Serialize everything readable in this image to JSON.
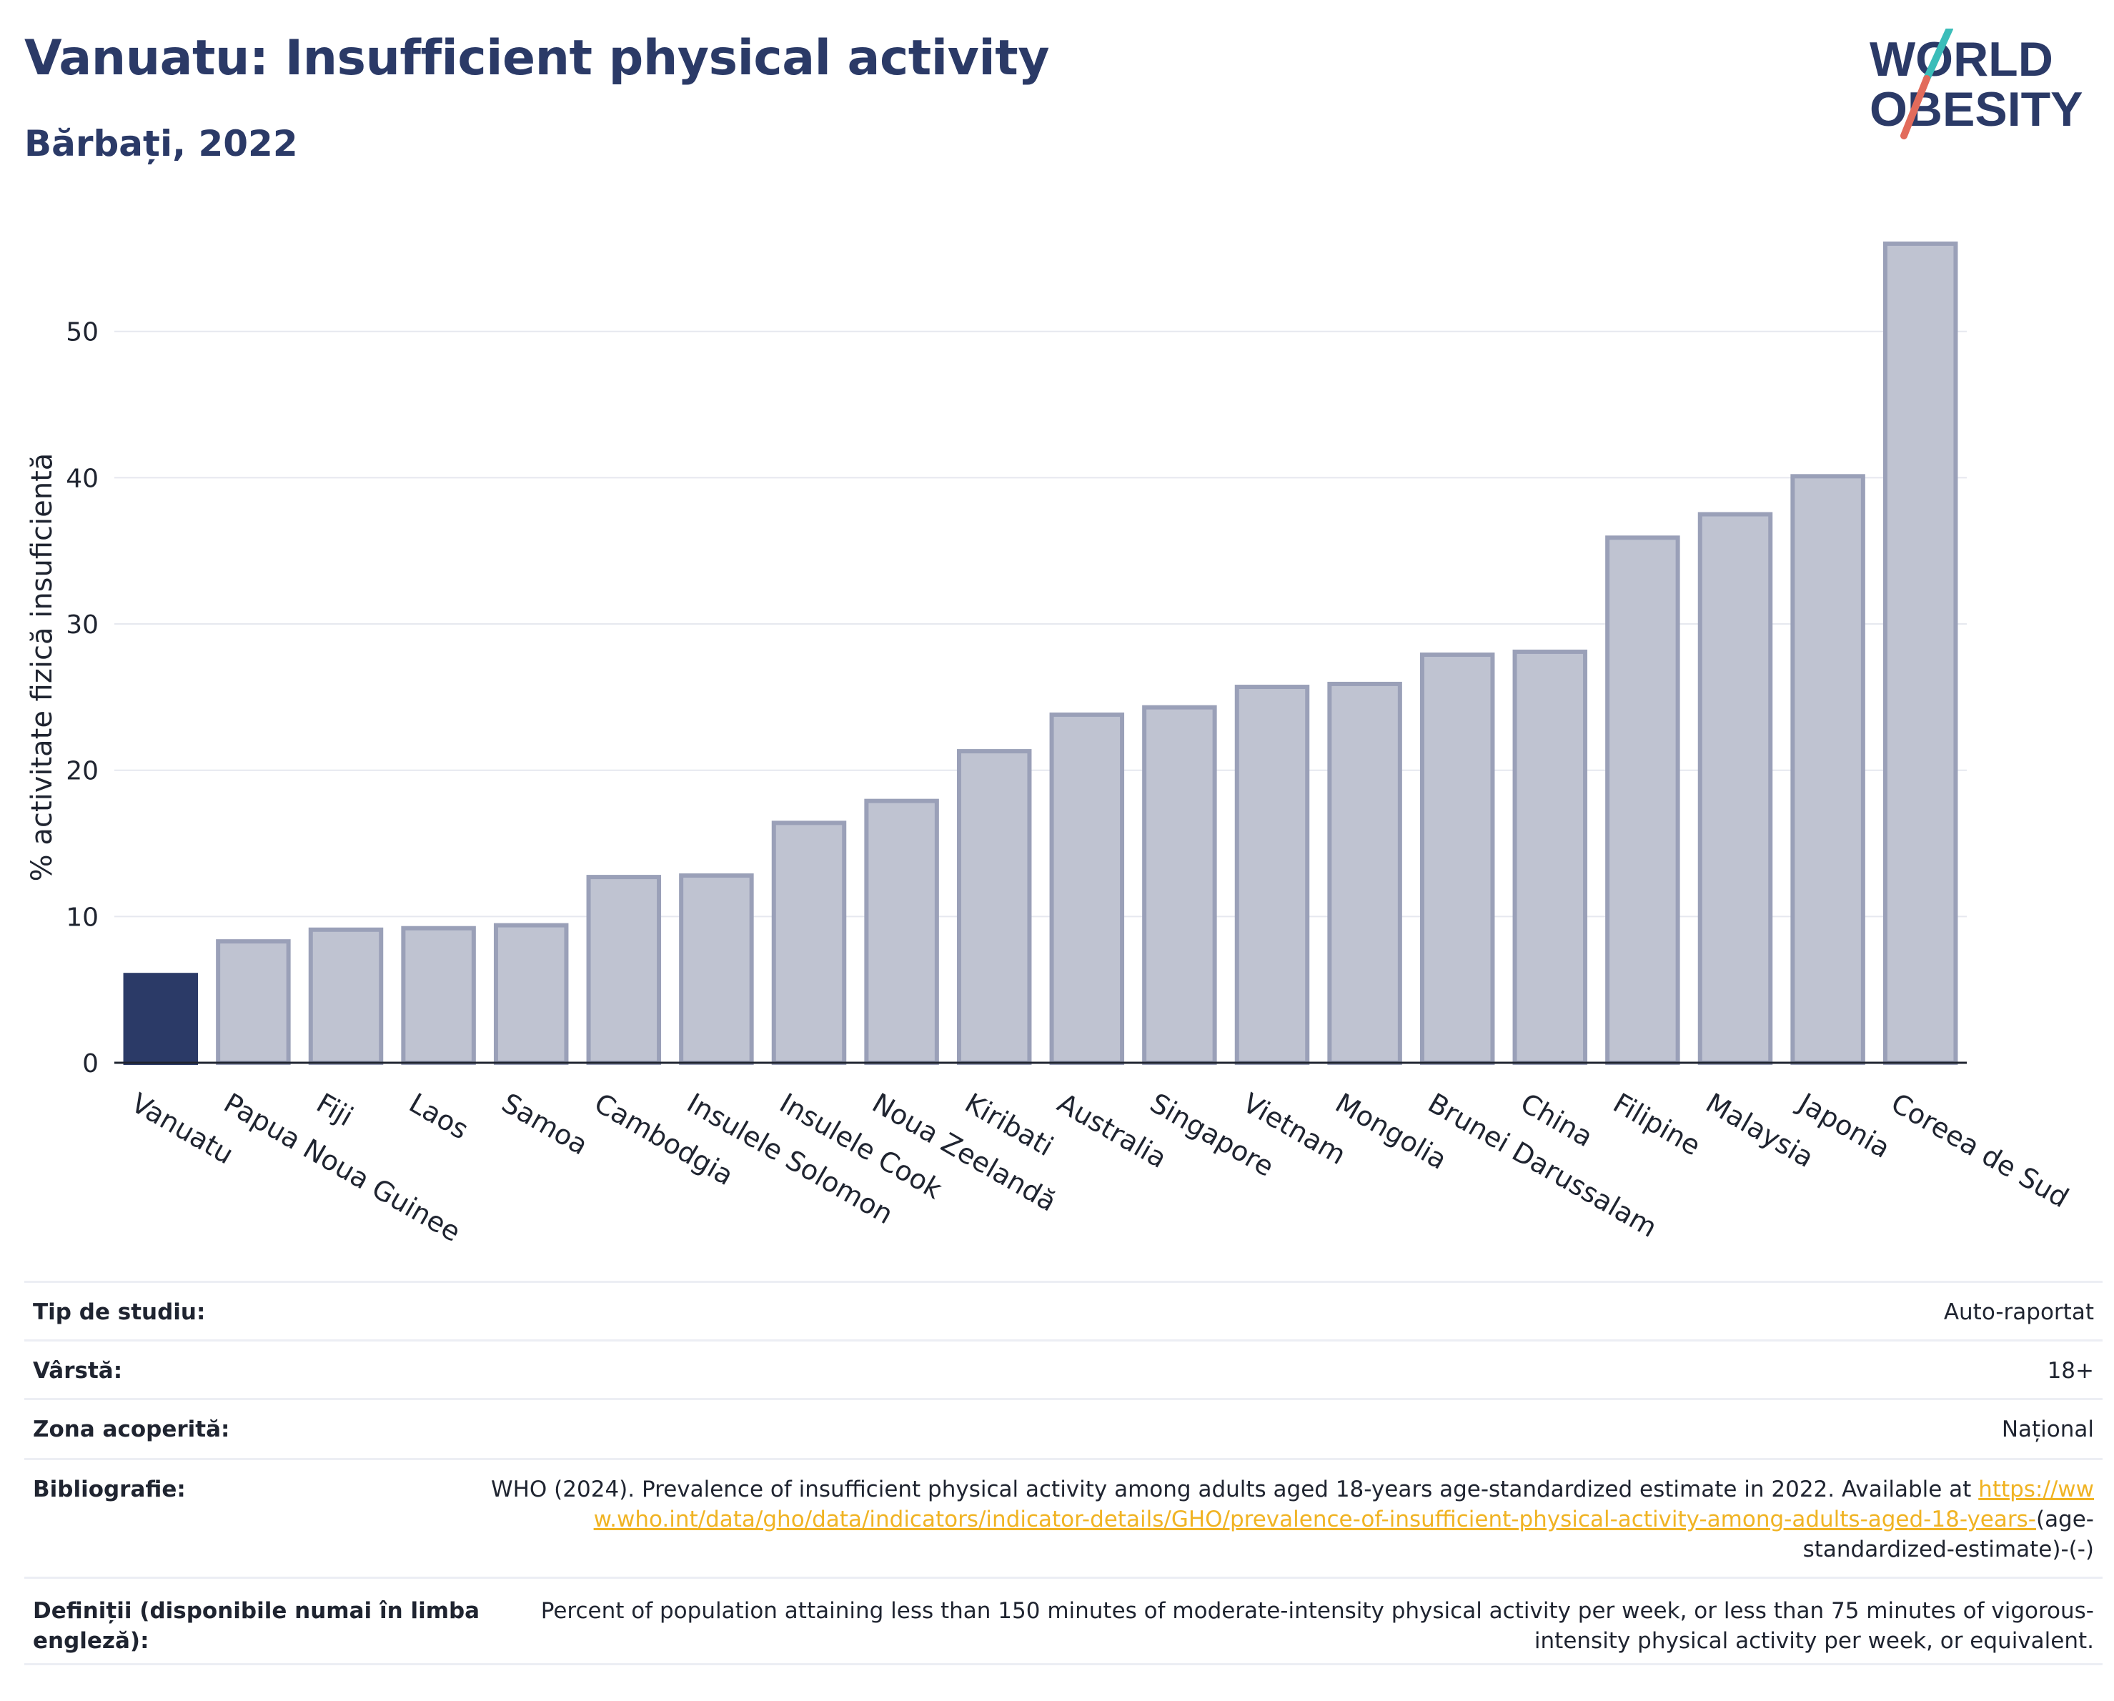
{
  "header": {
    "title": "Vanuatu: Insufficient physical activity",
    "subtitle": "Bărbați, 2022"
  },
  "logo": {
    "line1": "WORLD",
    "line2": "OBESITY",
    "accent_colors": [
      "#e26b5b",
      "#3bbdb9"
    ],
    "text_color": "#2b3a67"
  },
  "chart_data": {
    "type": "bar",
    "title": "Vanuatu: Insufficient physical activity",
    "subtitle": "Bărbați, 2022",
    "xlabel": "",
    "ylabel": "% activitate fizică insuficientă",
    "ylim": [
      0,
      58
    ],
    "yticks": [
      0,
      10,
      20,
      30,
      40,
      50
    ],
    "grid": true,
    "highlight_color": "#2b3a67",
    "bar_color": "#bfc3d1",
    "bar_border_color": "#9aa0b8",
    "categories": [
      "Vanuatu",
      "Papua Noua Guinee",
      "Fiji",
      "Laos",
      "Samoa",
      "Cambodgia",
      "Insulele Solomon",
      "Insulele Cook",
      "Noua Zeelandă",
      "Kiribati",
      "Australia",
      "Singapore",
      "Vietnam",
      "Mongolia",
      "Brunei Darussalam",
      "China",
      "Filipine",
      "Malaysia",
      "Japonia",
      "Coreea de Sud"
    ],
    "values": [
      6.0,
      8.3,
      9.1,
      9.2,
      9.4,
      12.7,
      12.8,
      16.4,
      17.9,
      21.3,
      23.8,
      24.3,
      25.7,
      25.9,
      27.9,
      28.1,
      35.9,
      37.5,
      40.1,
      56.0
    ],
    "highlight_index": 0
  },
  "info": {
    "rows": [
      {
        "label": "Tip de studiu:",
        "value": "Auto-raportat"
      },
      {
        "label": "Vârstă:",
        "value": "18+"
      },
      {
        "label": "Zona acoperită:",
        "value": "Național"
      }
    ],
    "bibliography": {
      "label": "Bibliografie:",
      "text": "WHO (2024). Prevalence of insufficient physical activity among adults aged 18-years age-standardized estimate in 2022. Available at",
      "link": "https://www.who.int/data/gho/data/indicators/indicator-details/GHO/prevalence-of-insufficient-physical-activity-among-adults-aged-18-years-",
      "suffix": "(age-standardized-estimate)-(-)"
    },
    "definitions": {
      "label": "Definiții (disponibile numai în limba engleză):",
      "value": "Percent of population attaining less than 150 minutes of moderate-intensity physical activity per week, or less than 75 minutes of vigorous-intensity physical activity per week, or equivalent."
    }
  }
}
